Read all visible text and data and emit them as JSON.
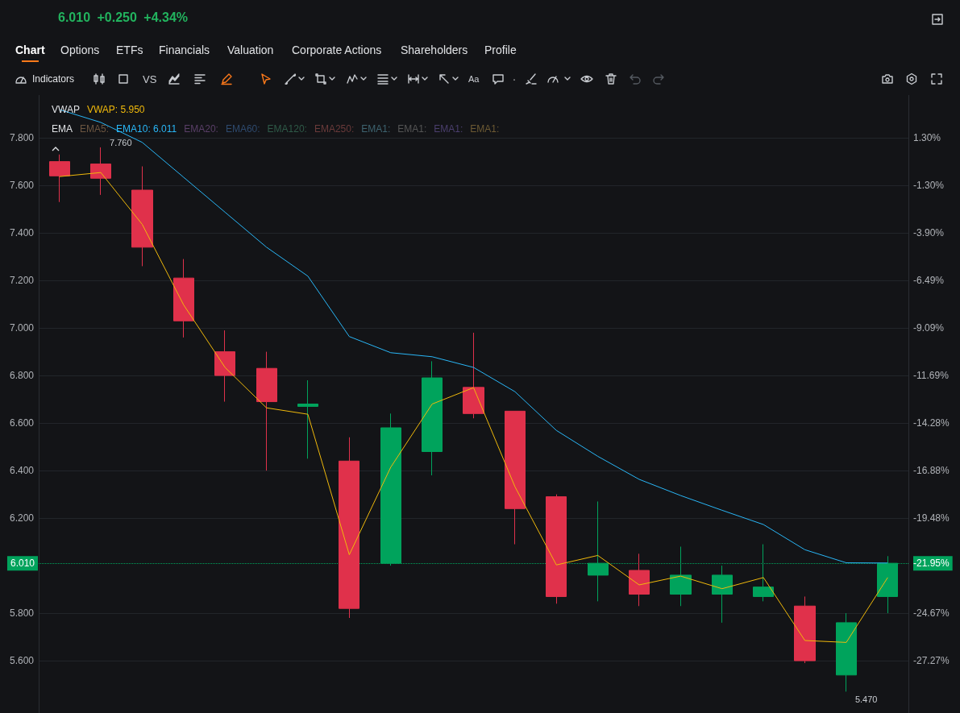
{
  "chart_data": {
    "type": "candlestick",
    "subtitle": "6.010 +0.250 +4.34%",
    "categories": [
      null,
      null,
      null,
      null,
      null,
      null,
      null,
      null,
      null,
      null,
      null,
      null,
      null,
      null,
      null,
      null,
      null,
      null,
      null,
      null,
      null
    ],
    "ohlc": [
      [
        7.7,
        7.73,
        7.53,
        7.64
      ],
      [
        7.69,
        7.76,
        7.56,
        7.63
      ],
      [
        7.58,
        7.68,
        7.26,
        7.34
      ],
      [
        7.21,
        7.29,
        6.96,
        7.03
      ],
      [
        6.9,
        6.99,
        6.69,
        6.8
      ],
      [
        6.83,
        6.9,
        6.4,
        6.69
      ],
      [
        6.67,
        6.78,
        6.45,
        6.68
      ],
      [
        6.44,
        6.54,
        5.78,
        5.82
      ],
      [
        6.01,
        6.64,
        6.0,
        6.58
      ],
      [
        6.48,
        6.86,
        6.38,
        6.79
      ],
      [
        6.75,
        6.98,
        6.62,
        6.64
      ],
      [
        6.65,
        6.65,
        6.09,
        6.24
      ],
      [
        6.29,
        6.3,
        5.84,
        5.87
      ],
      [
        5.96,
        6.27,
        5.85,
        6.01
      ],
      [
        5.98,
        6.05,
        5.83,
        5.88
      ],
      [
        5.88,
        6.08,
        5.83,
        5.96
      ],
      [
        5.88,
        6.0,
        5.76,
        5.96
      ],
      [
        5.87,
        6.09,
        5.85,
        5.91
      ],
      [
        5.83,
        5.87,
        5.59,
        5.6
      ],
      [
        5.54,
        5.8,
        5.47,
        5.76
      ],
      [
        5.87,
        6.04,
        5.8,
        6.01
      ]
    ],
    "series": [
      {
        "name": "VWAP: 5.950",
        "type": "line",
        "color": "#f0b90b",
        "values": [
          7.637,
          7.654,
          7.436,
          7.097,
          6.834,
          6.664,
          6.637,
          6.046,
          6.414,
          6.68,
          6.749,
          6.332,
          6.003,
          6.043,
          5.919,
          5.956,
          5.903,
          5.95,
          5.685,
          5.677,
          5.95
        ]
      },
      {
        "name": "EMA10: 6.011",
        "type": "line",
        "color": "#29b6f6",
        "values": [
          7.919,
          7.865,
          7.781,
          7.634,
          7.487,
          7.34,
          7.218,
          6.964,
          6.896,
          6.879,
          6.834,
          6.732,
          6.569,
          6.46,
          6.363,
          6.295,
          6.233,
          6.173,
          6.067,
          6.012,
          6.011
        ]
      }
    ],
    "ylim": [
      5.38,
      7.98
    ],
    "yticks": [
      {
        "value": 5.6,
        "label": "5.600"
      },
      {
        "value": 5.8,
        "label": "5.800"
      },
      {
        "value": 6.2,
        "label": "6.200"
      },
      {
        "value": 6.4,
        "label": "6.400"
      },
      {
        "value": 6.6,
        "label": "6.600"
      },
      {
        "value": 6.8,
        "label": "6.800"
      },
      {
        "value": 7.0,
        "label": "7.000"
      },
      {
        "value": 7.2,
        "label": "7.200"
      },
      {
        "value": 7.4,
        "label": "7.400"
      },
      {
        "value": 7.6,
        "label": "7.600"
      },
      {
        "value": 7.8,
        "label": "7.800"
      }
    ],
    "y2lim": [
      -30.13,
      3.64
    ],
    "y2ticks": [
      {
        "value": -27.27,
        "label": "-27.27%"
      },
      {
        "value": -24.67,
        "label": "-24.67%"
      },
      {
        "value": -21.95,
        "label": "-21.95%"
      },
      {
        "value": -19.48,
        "label": "-19.48%"
      },
      {
        "value": -16.88,
        "label": "-16.88%"
      },
      {
        "value": -14.28,
        "label": "-14.28%"
      },
      {
        "value": -11.69,
        "label": "-11.69%"
      },
      {
        "value": -9.09,
        "label": "-9.09%"
      },
      {
        "value": -6.49,
        "label": "-6.49%"
      },
      {
        "value": -3.9,
        "label": "-3.90%"
      },
      {
        "value": -1.3,
        "label": "-1.30%"
      },
      {
        "value": 1.3,
        "label": "1.30%"
      }
    ],
    "ref_lines": [
      {
        "axis": "y",
        "value": 6.01,
        "label": "6.010",
        "color": "#00a35c",
        "line_style": "dotted"
      }
    ],
    "grid": "y",
    "legend": "top left",
    "annotations": [
      "Chart",
      "Options",
      "ETFs",
      "Financials",
      "Valuation",
      "Corporate Actions",
      "Shareholders",
      "Profile",
      "Indicators",
      "VS",
      "Aa",
      "VWAP",
      "EMA",
      "EMA5:",
      "EMA20:",
      "EMA60:",
      "EMA120:",
      "EMA250:",
      "EMA1:",
      "EMA1:",
      "EMA1:",
      "EMA1:",
      "7.760",
      "5.470"
    ]
  }
}
